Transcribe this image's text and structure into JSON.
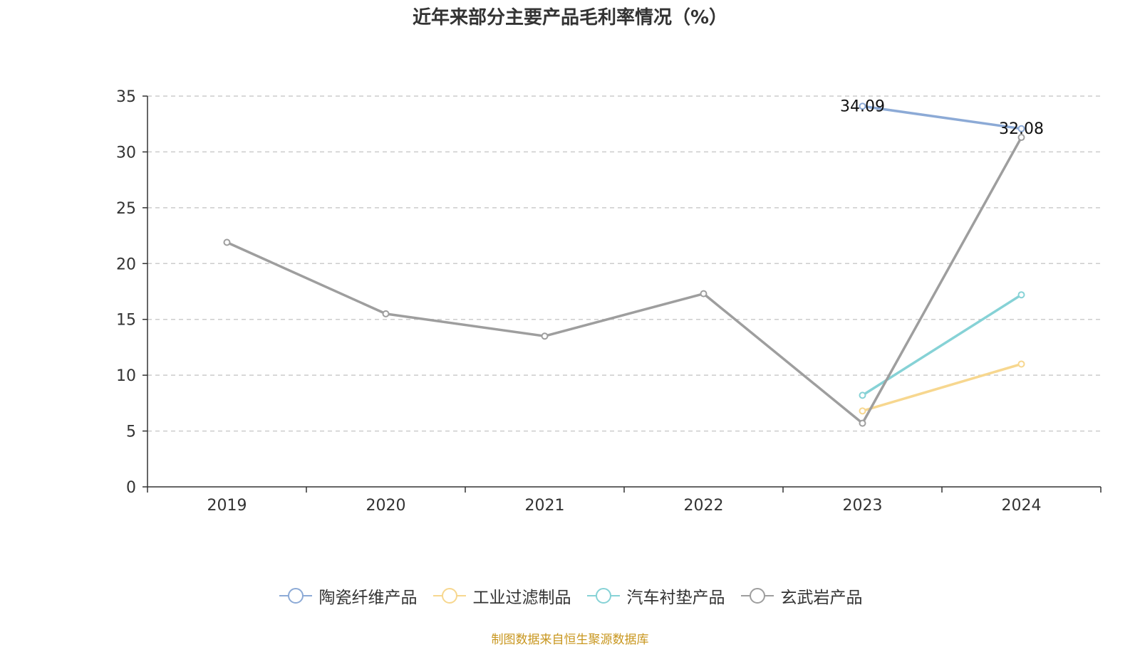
{
  "chart_data": {
    "type": "line",
    "title": "近年来部分主要产品毛利率情况（%）",
    "categories": [
      "2019",
      "2020",
      "2021",
      "2022",
      "2023",
      "2024"
    ],
    "ylim": [
      0,
      35
    ],
    "yticks": [
      0,
      5,
      10,
      15,
      20,
      25,
      30,
      35
    ],
    "grid": true,
    "legend_position": "bottom",
    "series": [
      {
        "name": "陶瓷纤维产品",
        "color": "#8caad6",
        "values": [
          null,
          null,
          null,
          null,
          34.09,
          32.08
        ],
        "labels": [
          "",
          "",
          "",
          "",
          "34.09",
          "32.08"
        ]
      },
      {
        "name": "工业过滤制品",
        "color": "#f7d78f",
        "values": [
          null,
          null,
          null,
          null,
          6.8,
          11.0
        ],
        "labels": [
          "",
          "",
          "",
          "",
          "",
          ""
        ]
      },
      {
        "name": "汽车衬垫产品",
        "color": "#86d2d6",
        "values": [
          null,
          null,
          null,
          null,
          8.2,
          17.2
        ],
        "labels": [
          "",
          "",
          "",
          "",
          "",
          ""
        ]
      },
      {
        "name": "玄武岩产品",
        "color": "#9e9e9e",
        "values": [
          21.9,
          15.5,
          13.5,
          17.3,
          5.7,
          31.3
        ],
        "labels": [
          "",
          "",
          "",
          "",
          "",
          ""
        ]
      }
    ]
  },
  "footer": {
    "source": "制图数据来自恒生聚源数据库"
  }
}
